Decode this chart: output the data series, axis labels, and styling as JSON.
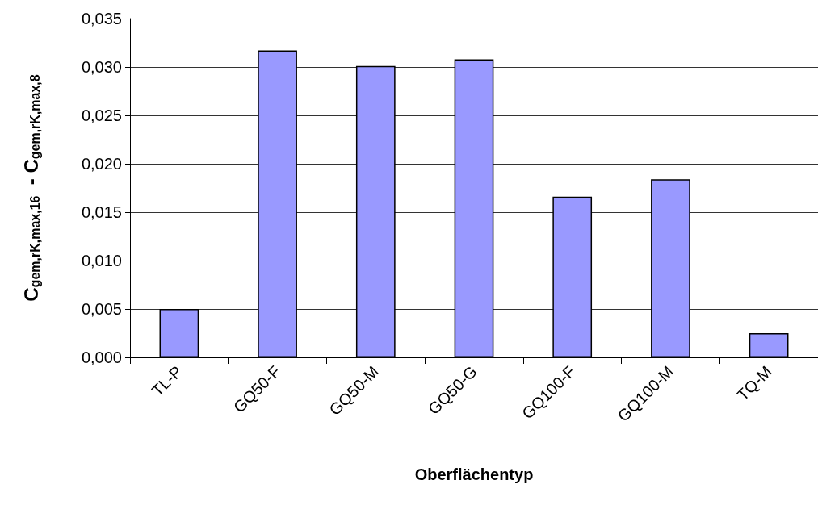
{
  "chart_data": {
    "type": "bar",
    "xlabel": "Oberflächentyp",
    "ylabel": "C$_{gem,rK,max,16}$  - C$_{gem,rK,max,8}$",
    "categories": [
      "TL-P",
      "GQ50-F",
      "GQ50-M",
      "GQ50-G",
      "GQ100-F",
      "GQ100-M",
      "TQ-M"
    ],
    "values": [
      0.005,
      0.0317,
      0.0301,
      0.0308,
      0.0166,
      0.0184,
      0.0025
    ],
    "color": "#9999ff",
    "ylim": [
      0,
      0.035
    ],
    "yticks": [
      {
        "value": 0,
        "label": "0,000"
      },
      {
        "value": 0.005,
        "label": "0,005"
      },
      {
        "value": 0.01,
        "label": "0,010"
      },
      {
        "value": 0.015,
        "label": "0,015"
      },
      {
        "value": 0.02,
        "label": "0,020"
      },
      {
        "value": 0.025,
        "label": "0,025"
      },
      {
        "value": 0.03,
        "label": "0,030"
      },
      {
        "value": 0.035,
        "label": "0,035"
      }
    ],
    "grid": "y"
  }
}
